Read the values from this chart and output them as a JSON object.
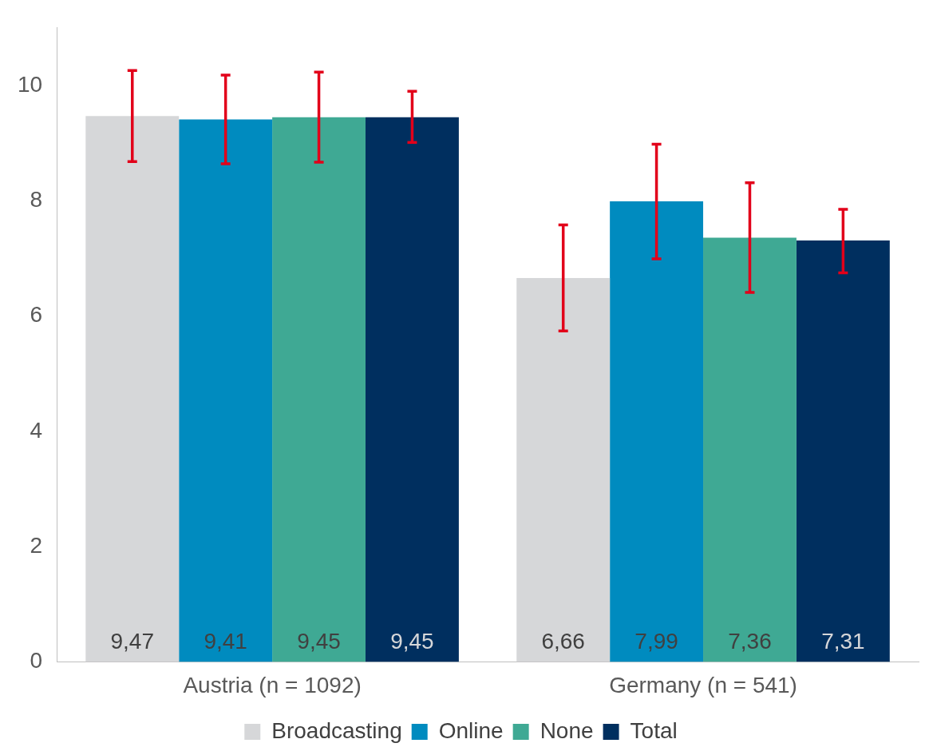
{
  "chart_data": {
    "type": "bar",
    "categories": [
      "Austria (n = 1092)",
      "Germany (n = 541)"
    ],
    "series": [
      {
        "name": "Broadcasting",
        "color": "#d6d7d9",
        "values": [
          9.47,
          6.66
        ],
        "value_labels": [
          "9,47",
          "6,66"
        ],
        "errors": [
          [
            8.68,
            10.26
          ],
          [
            5.74,
            7.58
          ]
        ]
      },
      {
        "name": "Online",
        "color": "#008bbf",
        "values": [
          9.41,
          7.99
        ],
        "value_labels": [
          "9,41",
          "7,99"
        ],
        "errors": [
          [
            8.64,
            10.18
          ],
          [
            6.99,
            8.98
          ]
        ]
      },
      {
        "name": "None",
        "color": "#3fa994",
        "values": [
          9.45,
          7.36
        ],
        "value_labels": [
          "9,45",
          "7,36"
        ],
        "errors": [
          [
            8.67,
            10.23
          ],
          [
            6.41,
            8.31
          ]
        ]
      },
      {
        "name": "Total",
        "color": "#002f5f",
        "values": [
          9.45,
          7.31
        ],
        "value_labels": [
          "9,45",
          "7,31"
        ],
        "errors": [
          [
            9.01,
            9.9
          ],
          [
            6.75,
            7.85
          ]
        ]
      }
    ],
    "ylim": [
      0,
      11
    ],
    "yticks": [
      0,
      2,
      4,
      6,
      8,
      10
    ],
    "grid": false,
    "legend": "bottom"
  }
}
